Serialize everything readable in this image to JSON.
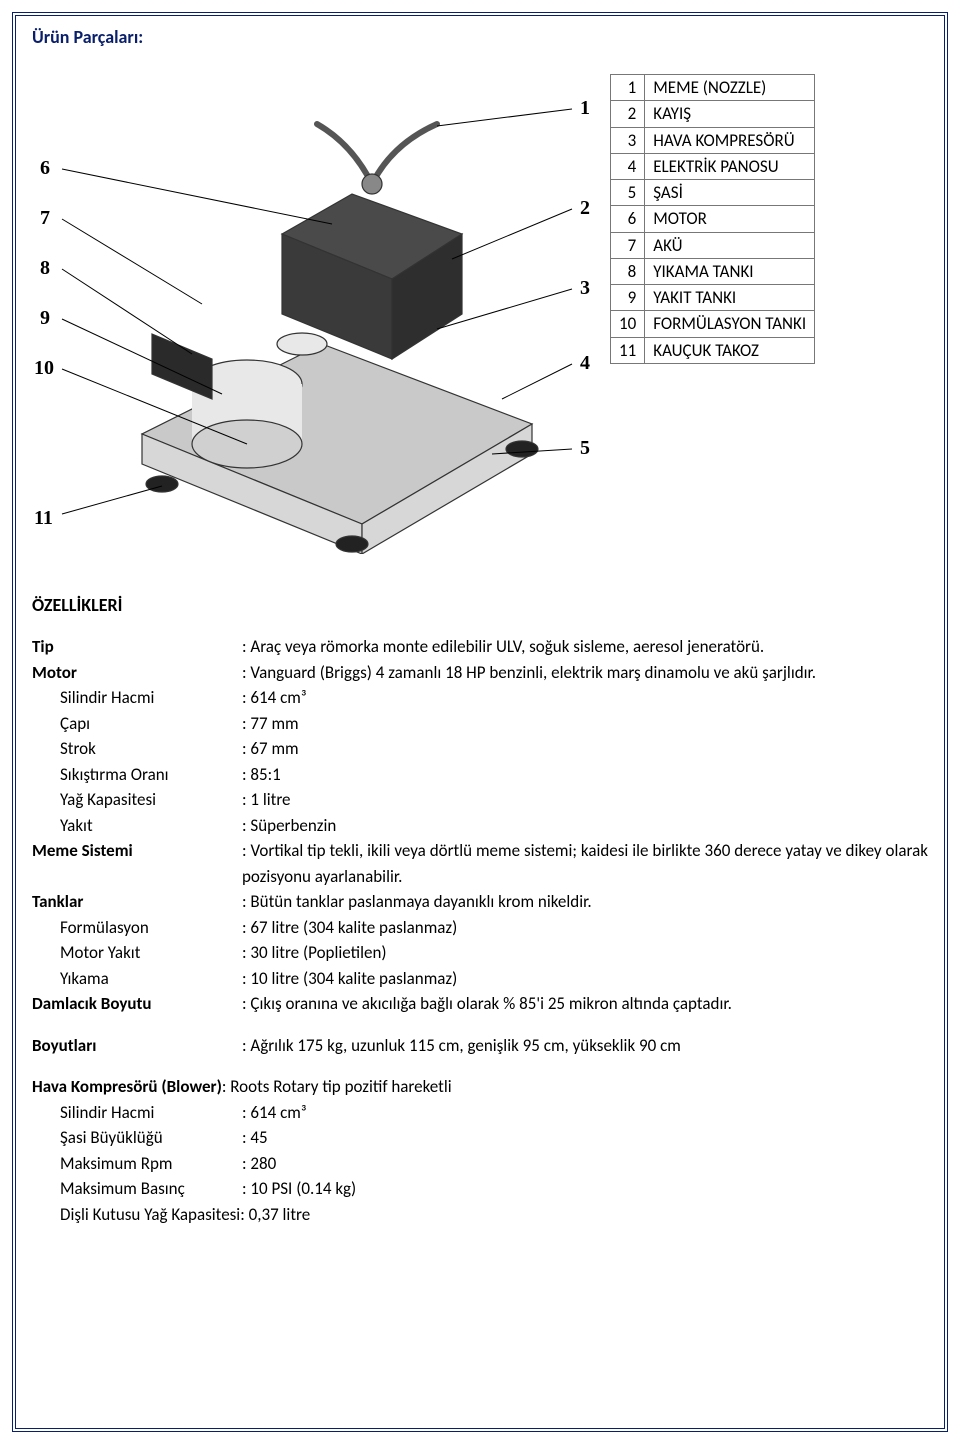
{
  "colors": {
    "frame": "#0a1f6b",
    "text": "#000000",
    "table_border": "#777777",
    "background": "#ffffff"
  },
  "typography": {
    "body_font": "Calibri, Arial, sans-serif",
    "body_size_pt": 12,
    "title_size_pt": 13
  },
  "section_title": "Ürün Parçaları:",
  "diagram": {
    "description": "Isometric line drawing of a skid-mounted ULV aerosol generator with numbered callouts 1–11",
    "callouts_left": [
      "6",
      "7",
      "8",
      "9",
      "10",
      "11"
    ],
    "callouts_right": [
      "1",
      "2",
      "3",
      "4",
      "5"
    ]
  },
  "parts": [
    {
      "n": "1",
      "name": "MEME (NOZZLE)"
    },
    {
      "n": "2",
      "name": "KAYIŞ"
    },
    {
      "n": "3",
      "name": "HAVA KOMPRESÖRÜ"
    },
    {
      "n": "4",
      "name": "ELEKTRİK PANOSU"
    },
    {
      "n": "5",
      "name": "ŞASİ"
    },
    {
      "n": "6",
      "name": "MOTOR"
    },
    {
      "n": "7",
      "name": "AKÜ"
    },
    {
      "n": "8",
      "name": "YIKAMA TANKI"
    },
    {
      "n": "9",
      "name": "YAKIT TANKI"
    },
    {
      "n": "10",
      "name": "FORMÜLASYON TANKI"
    },
    {
      "n": "11",
      "name": "KAUÇUK TAKOZ"
    }
  ],
  "features_title": "ÖZELLİKLERİ",
  "specs": [
    {
      "label": "Tip",
      "bold": true,
      "indent": false,
      "value": ": Araç veya römorka monte edilebilir ULV, soğuk sisleme, aeresol jeneratörü."
    },
    {
      "label": "Motor",
      "bold": true,
      "indent": false,
      "value": ": Vanguard (Briggs) 4 zamanlı 18 HP benzinli, elektrik marş dinamolu ve akü şarjlıdır."
    },
    {
      "label": "Silindir Hacmi",
      "bold": false,
      "indent": true,
      "value": ": 614 cm³"
    },
    {
      "label": "Çapı",
      "bold": false,
      "indent": true,
      "value": ": 77 mm"
    },
    {
      "label": "Strok",
      "bold": false,
      "indent": true,
      "value": ": 67 mm"
    },
    {
      "label": "Sıkıştırma Oranı",
      "bold": false,
      "indent": true,
      "value": ": 85:1"
    },
    {
      "label": "Yağ Kapasitesi",
      "bold": false,
      "indent": true,
      "value": ": 1 litre"
    },
    {
      "label": "Yakıt",
      "bold": false,
      "indent": true,
      "value": ": Süperbenzin"
    },
    {
      "label": "Meme Sistemi",
      "bold": true,
      "indent": false,
      "value": ": Vortikal tip tekli, ikili veya dörtlü meme sistemi; kaidesi ile birlikte 360 derece yatay ve dikey olarak pozisyonu ayarlanabilir."
    },
    {
      "label": "Tanklar",
      "bold": true,
      "indent": false,
      "value": ": Bütün tanklar paslanmaya dayanıklı krom nikeldir."
    },
    {
      "label": "Formülasyon",
      "bold": false,
      "indent": true,
      "value": ": 67 litre (304 kalite paslanmaz)"
    },
    {
      "label": "Motor Yakıt",
      "bold": false,
      "indent": true,
      "value": ": 30 litre (Poplietilen)"
    },
    {
      "label": "Yıkama",
      "bold": false,
      "indent": true,
      "value": ": 10 litre (304 kalite paslanmaz)"
    },
    {
      "label": "Damlacık Boyutu",
      "bold": true,
      "indent": false,
      "value": ": Çıkış oranına ve akıcılığa bağlı olarak % 85'i 25 mikron altında çaptadır."
    }
  ],
  "dimensions": {
    "label": "Boyutları",
    "value": ": Ağrılık 175 kg, uzunluk 115 cm, genişlik 95 cm, yükseklik 90 cm"
  },
  "blower": {
    "lead": "Hava Kompresörü (Blower)",
    "lead_value": ": Roots Rotary tip pozitif hareketli",
    "rows": [
      {
        "label": "Silindir Hacmi",
        "value": ": 614 cm³"
      },
      {
        "label": "Şasi Büyüklüğü",
        "value": ": 45"
      },
      {
        "label": "Maksimum Rpm",
        "value": ": 280"
      },
      {
        "label": "Maksimum Basınç",
        "value": ": 10 PSI (0.14 kg)"
      }
    ],
    "last": "Dişli Kutusu Yağ Kapasitesi: 0,37 litre"
  }
}
